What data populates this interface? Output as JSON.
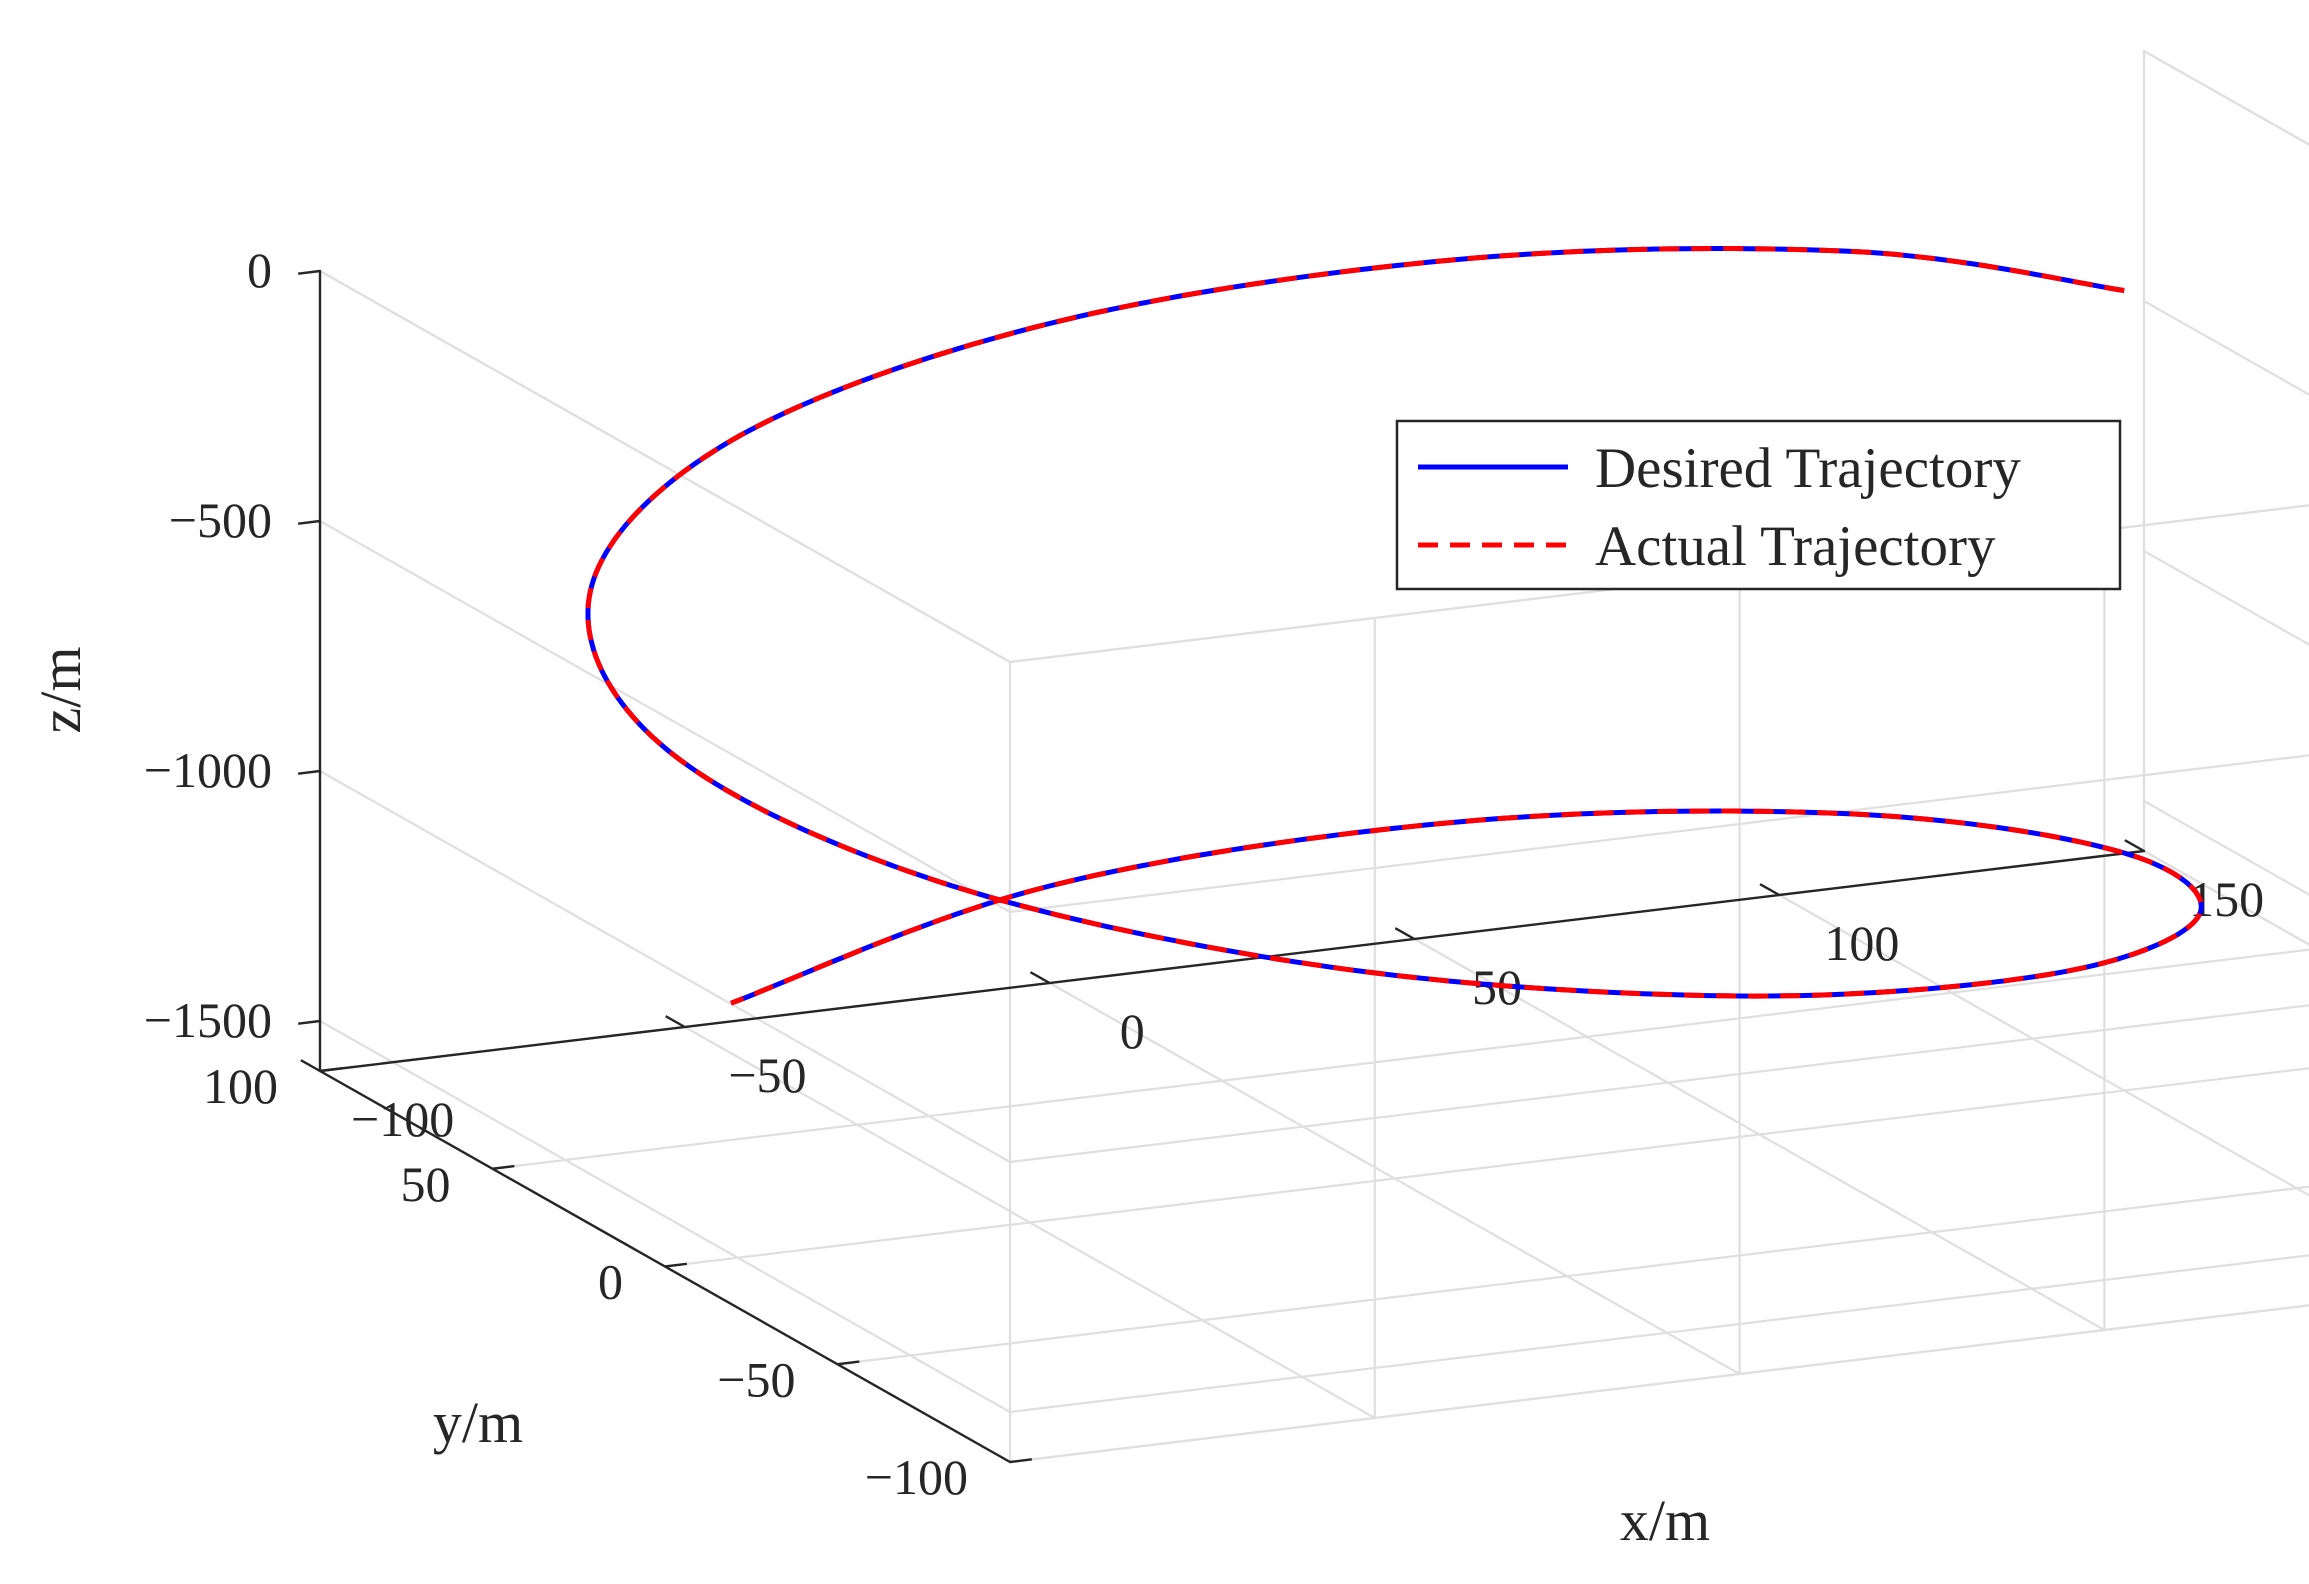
{
  "chart_data": {
    "type": "line",
    "projection": "3d",
    "title": "",
    "xlabel": "x/m",
    "ylabel": "y/m",
    "zlabel": "z/m",
    "xlim": [
      -100,
      150
    ],
    "ylim": [
      -100,
      100
    ],
    "zlim": [
      -1600,
      0
    ],
    "xticks": [
      -100,
      -50,
      0,
      50,
      100,
      150
    ],
    "yticks": [
      -100,
      -50,
      0,
      50,
      100
    ],
    "zticks": [
      -1500,
      -1000,
      -500,
      0
    ],
    "xtick_labels": [
      "−100",
      "−50",
      "0",
      "50",
      "100",
      "150"
    ],
    "ytick_labels": [
      "−100",
      "−50",
      "0",
      "50",
      "100"
    ],
    "ztick_labels": [
      "−1500",
      "−1000",
      "−500",
      "0"
    ],
    "grid": true,
    "box": true,
    "legend_position": "top-right",
    "colors": {
      "desired": "#0000ff",
      "actual": "#ff0000",
      "grid": "#dfdfdf",
      "axis": "#262626"
    },
    "series": [
      {
        "name": "Desired Trajectory",
        "style": "solid",
        "color": "#0000ff",
        "x": [
          100,
          86.6,
          50,
          0,
          -50,
          -86.6,
          -100,
          -86.6,
          -50,
          0,
          50,
          86.6,
          100,
          86.6,
          50,
          0,
          -50
        ],
        "y": [
          0,
          50,
          86.6,
          100,
          86.6,
          50,
          0,
          -50,
          -86.6,
          -100,
          -86.6,
          -50,
          0,
          50,
          86.6,
          100,
          86.6
        ],
        "z": [
          0,
          -94,
          -188,
          -281,
          -375,
          -469,
          -563,
          -656,
          -750,
          -844,
          -938,
          -1031,
          -1125,
          -1219,
          -1313,
          -1406,
          -1500
        ]
      },
      {
        "name": "Actual Trajectory",
        "style": "dashed",
        "color": "#ff0000",
        "x": [
          100,
          86.6,
          50,
          0,
          -50,
          -86.6,
          -100,
          -86.6,
          -50,
          0,
          50,
          86.6,
          100,
          86.6,
          50,
          0,
          -50
        ],
        "y": [
          0,
          50,
          86.6,
          100,
          86.6,
          50,
          0,
          -50,
          -86.6,
          -100,
          -86.6,
          -50,
          0,
          50,
          86.6,
          100,
          86.6
        ],
        "z": [
          0,
          -94,
          -188,
          -281,
          -375,
          -469,
          -563,
          -656,
          -750,
          -844,
          -938,
          -1031,
          -1125,
          -1219,
          -1313,
          -1406,
          -1500
        ]
      }
    ]
  }
}
